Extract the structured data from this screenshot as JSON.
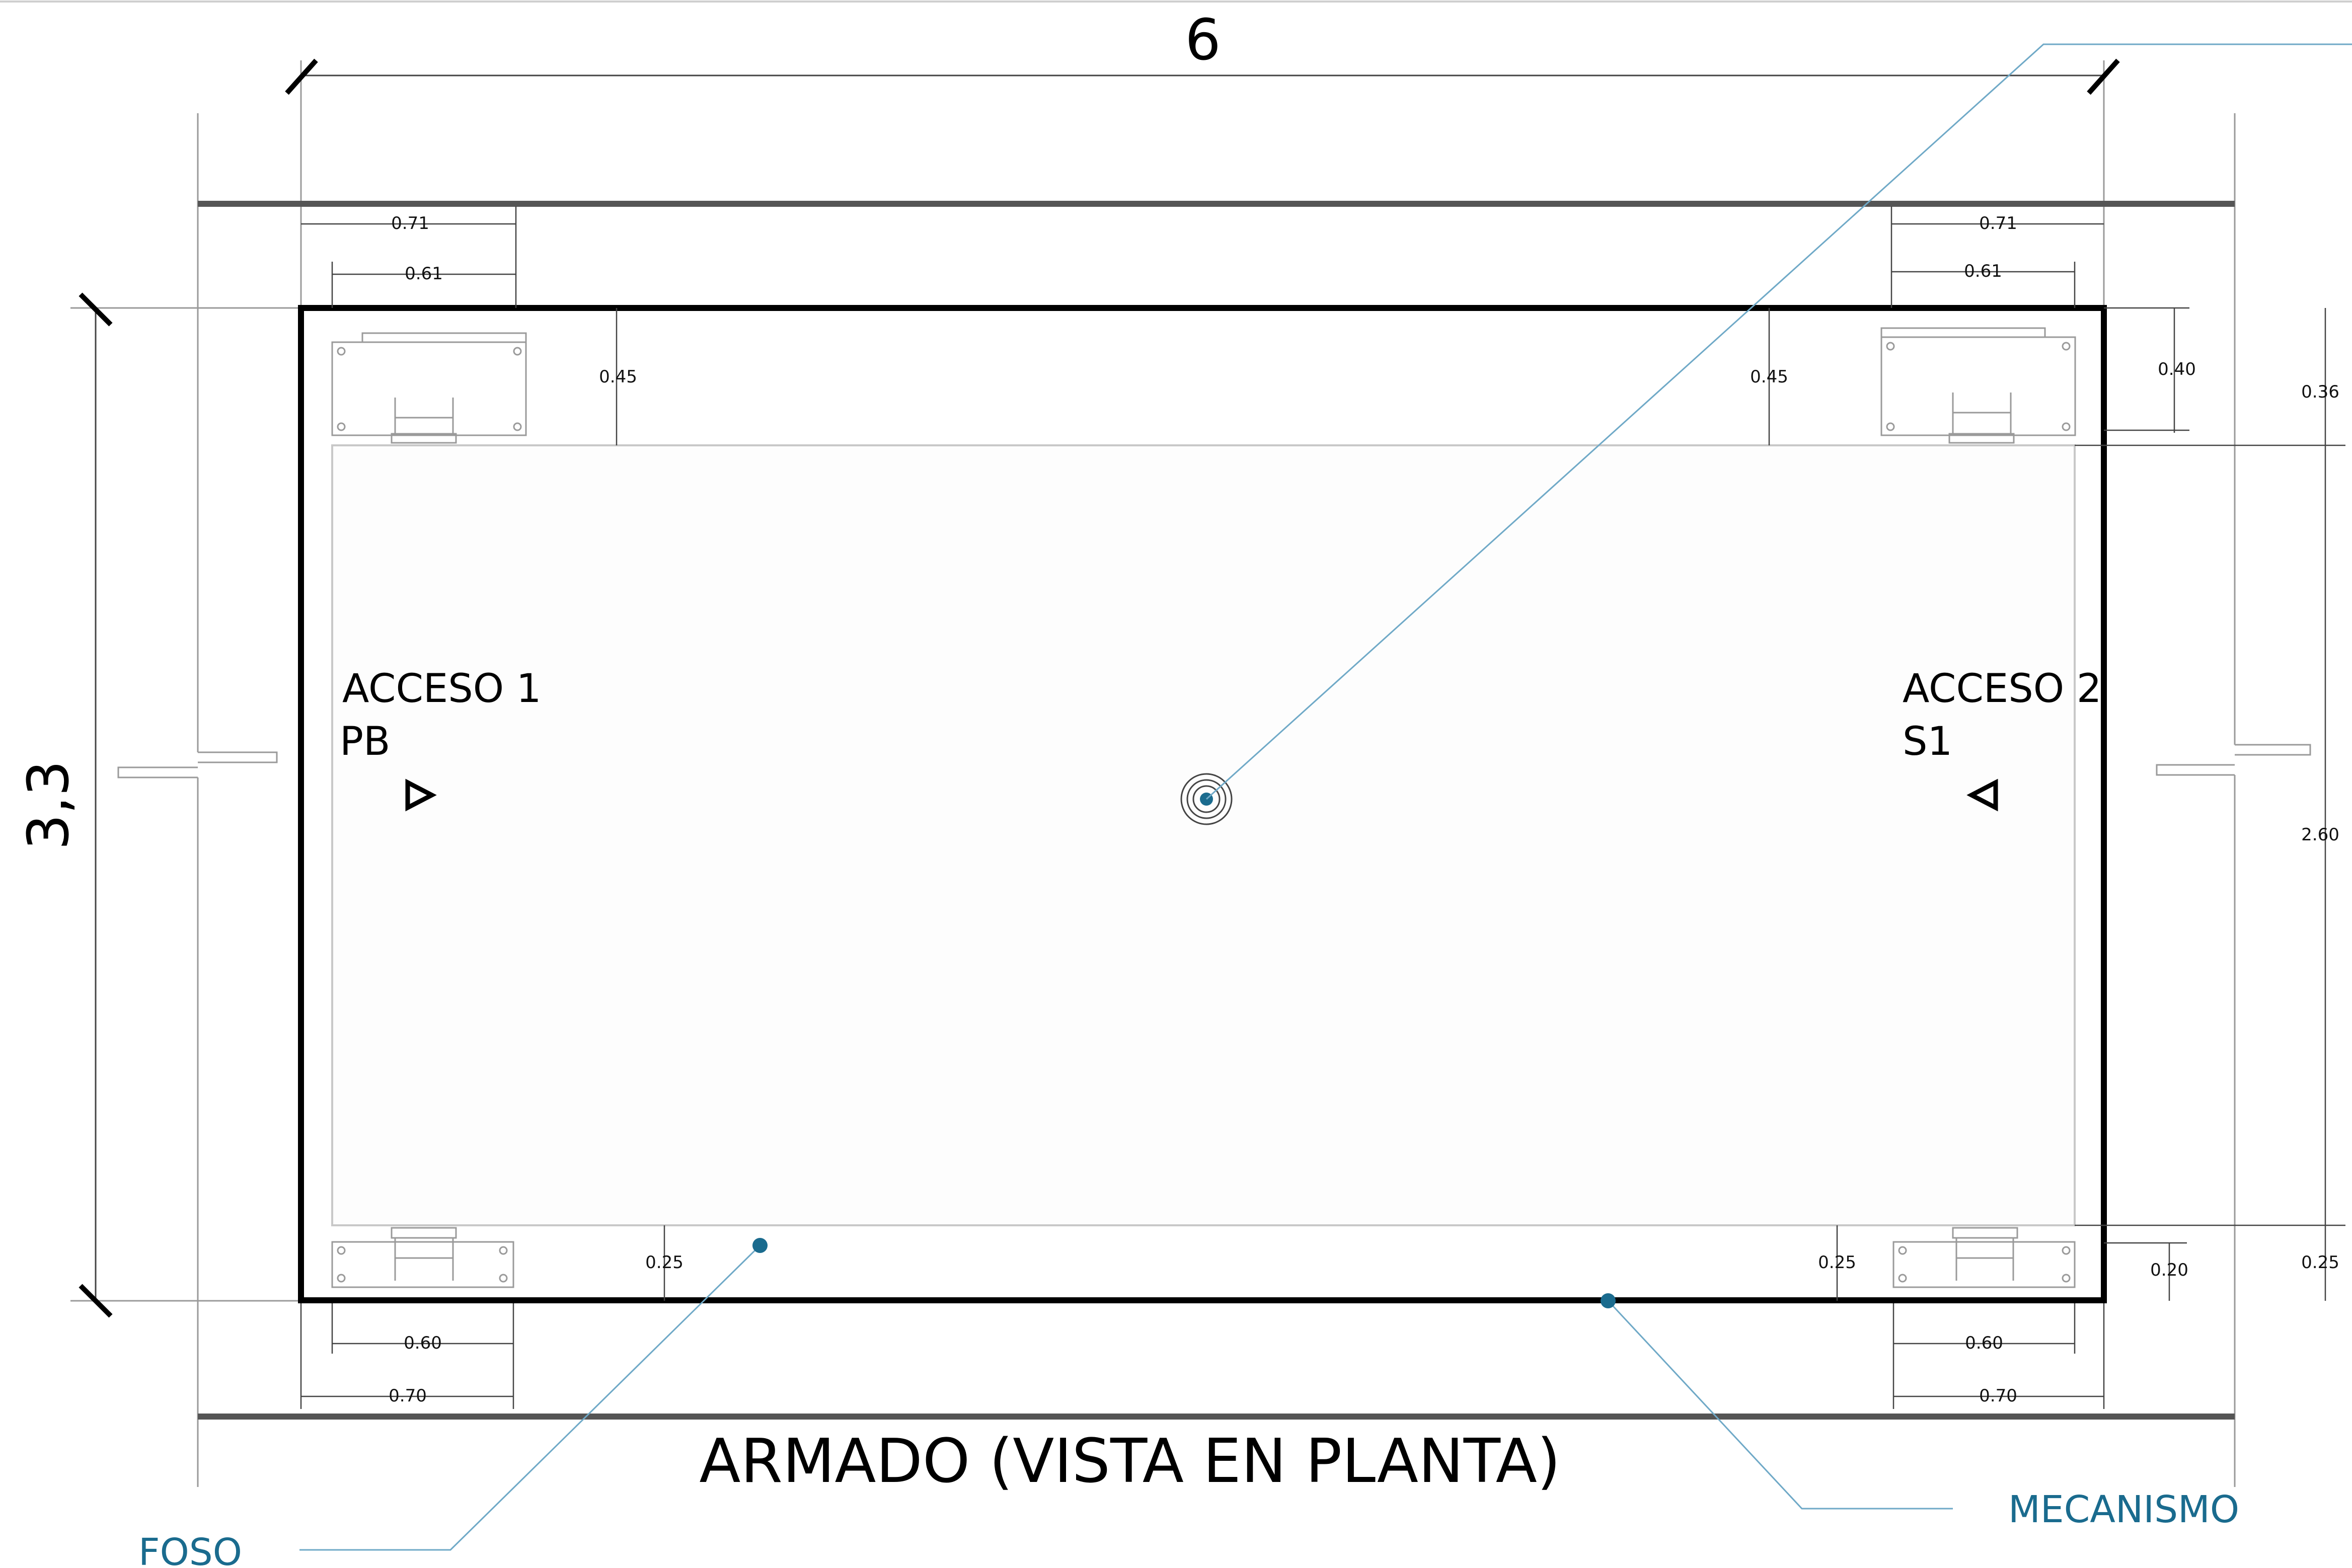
{
  "drawing": {
    "title": "ARMADO (VISTA EN PLANTA)",
    "overall_width": "6",
    "overall_depth": "3,3",
    "access_left": {
      "line1": "ACCESO 1",
      "line2": "PB"
    },
    "access_right": {
      "line1": "ACCESO 2",
      "line2": "S1"
    },
    "accent_color": "#1a6b8e"
  },
  "callouts": {
    "foso": "FOSO",
    "mecanismo": "MECANISMO"
  },
  "dimensions": {
    "top_left_outer": "0.71",
    "top_left_inner": "0.61",
    "top_right_outer": "0.71",
    "top_right_inner": "0.61",
    "bottom_left_inner": "0.60",
    "bottom_left_outer": "0.70",
    "bottom_right_inner": "0.60",
    "bottom_right_outer": "0.70",
    "top_left_depth": "0.45",
    "top_right_depth": "0.45",
    "bottom_left_depth": "0.25",
    "bottom_right_depth": "0.25",
    "right_top_inner": "0.40",
    "right_top_outer": "0.36",
    "right_middle": "2.60",
    "right_bottom_inner": "0.20",
    "right_bottom_outer": "0.25"
  }
}
